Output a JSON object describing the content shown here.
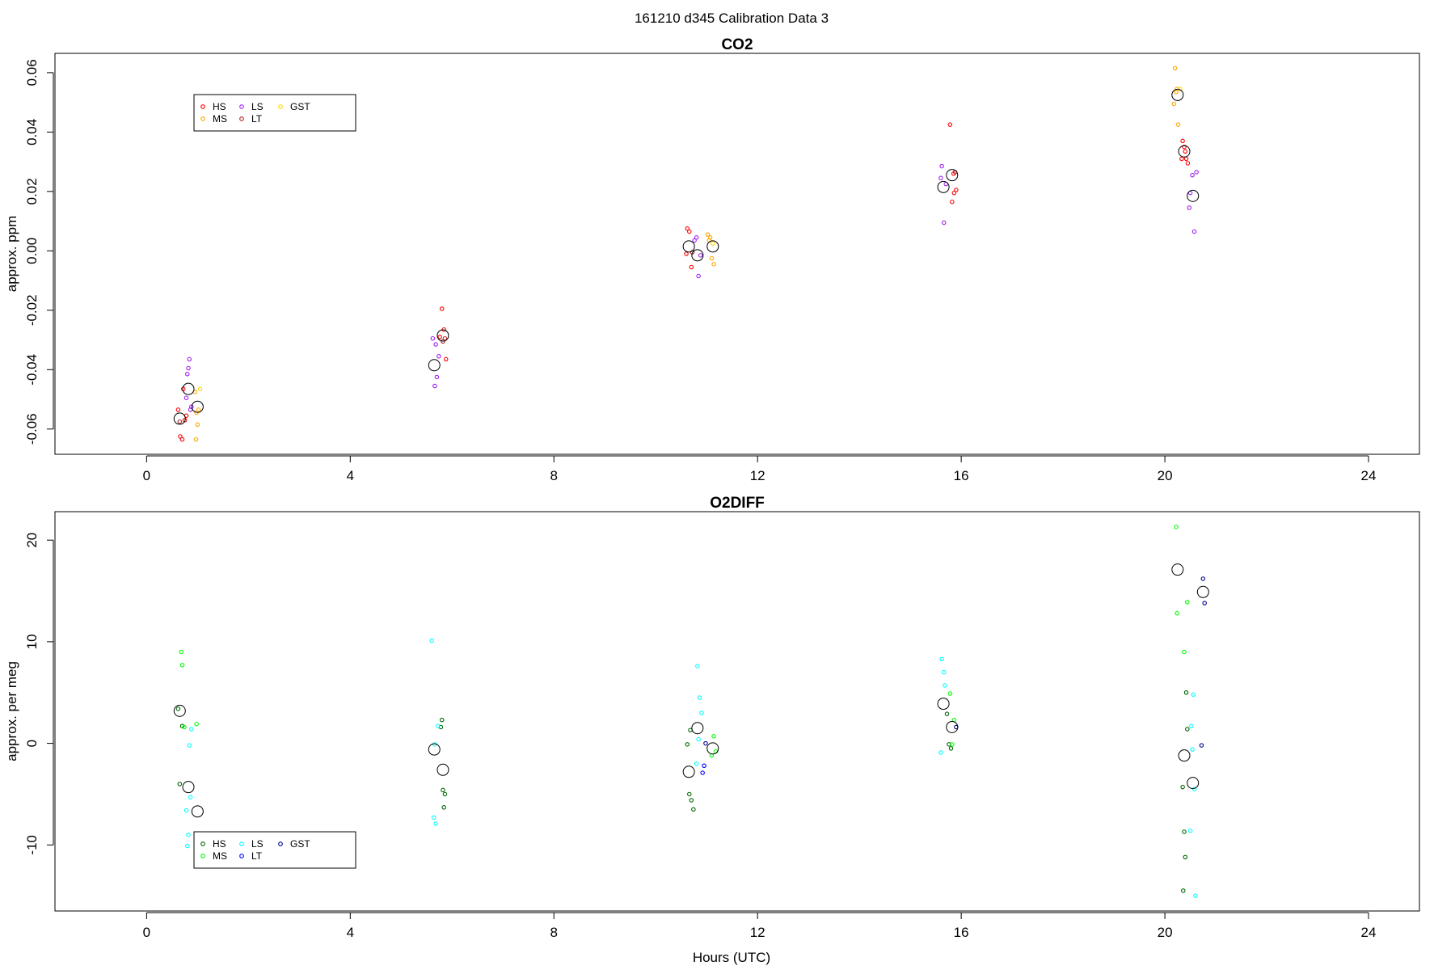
{
  "figure": {
    "suptitle": "161210   d345   Calibration Data 3",
    "xlabel": "Hours (UTC)"
  },
  "chart_data": [
    {
      "type": "scatter",
      "title": "CO2",
      "ylabel": "approx. ppm",
      "xlim": [
        -1.8,
        25
      ],
      "ylim": [
        -0.0685,
        0.0665
      ],
      "xticks": [
        0,
        4,
        8,
        12,
        16,
        20,
        24
      ],
      "yticks": [
        -0.06,
        -0.04,
        -0.02,
        0.0,
        0.02,
        0.04,
        0.06
      ],
      "ytick_labels": [
        "-0.06",
        "-0.04",
        "-0.02",
        "0.00",
        "0.02",
        "0.04",
        "0.06"
      ],
      "grid": false,
      "legend": {
        "placement": "top-left",
        "entries": [
          {
            "label": "HS",
            "color": "#ff0000"
          },
          {
            "label": "MS",
            "color": "#ffa500"
          },
          {
            "label": "LS",
            "color": "#a020f0"
          },
          {
            "label": "LT",
            "color": "#b22222"
          },
          {
            "label": "GST",
            "color": "#ffd700"
          }
        ]
      },
      "series": [
        {
          "color": "#ff0000",
          "points": [
            [
              0.62,
              -0.0535
            ],
            [
              0.66,
              -0.0625
            ],
            [
              0.7,
              -0.0635
            ],
            [
              0.72,
              -0.0465
            ],
            [
              0.75,
              -0.057
            ],
            [
              0.78,
              -0.0555
            ],
            [
              5.8,
              -0.0195
            ],
            [
              5.84,
              -0.0265
            ],
            [
              5.88,
              -0.0365
            ],
            [
              5.76,
              -0.029
            ],
            [
              10.62,
              0.0075
            ],
            [
              10.66,
              0.0065
            ],
            [
              10.7,
              -0.0055
            ],
            [
              10.6,
              -0.001
            ],
            [
              15.78,
              0.0425
            ],
            [
              15.82,
              0.0165
            ],
            [
              15.86,
              0.0195
            ],
            [
              15.9,
              0.0205
            ],
            [
              15.85,
              0.026
            ],
            [
              20.35,
              0.037
            ],
            [
              20.38,
              0.035
            ],
            [
              20.42,
              0.031
            ],
            [
              20.45,
              0.0295
            ],
            [
              20.33,
              0.031
            ],
            [
              20.4,
              0.0335
            ]
          ]
        },
        {
          "color": "#ffa500",
          "points": [
            [
              0.95,
              -0.0475
            ],
            [
              0.98,
              -0.0545
            ],
            [
              1.0,
              -0.0585
            ],
            [
              1.02,
              -0.0535
            ],
            [
              0.97,
              -0.0635
            ],
            [
              11.02,
              0.0055
            ],
            [
              11.05,
              0.0035
            ],
            [
              11.1,
              -0.0025
            ],
            [
              11.14,
              -0.0045
            ],
            [
              11.07,
              0.0045
            ],
            [
              20.2,
              0.0615
            ],
            [
              20.24,
              0.0545
            ],
            [
              20.18,
              0.0495
            ],
            [
              20.26,
              0.0425
            ],
            [
              20.22,
              0.0535
            ]
          ]
        },
        {
          "color": "#a020f0",
          "points": [
            [
              0.78,
              -0.0495
            ],
            [
              0.82,
              -0.0395
            ],
            [
              0.84,
              -0.0365
            ],
            [
              0.86,
              -0.0535
            ],
            [
              0.88,
              -0.0525
            ],
            [
              0.8,
              -0.0415
            ],
            [
              5.62,
              -0.0295
            ],
            [
              5.66,
              -0.0455
            ],
            [
              5.7,
              -0.0425
            ],
            [
              5.74,
              -0.0355
            ],
            [
              5.68,
              -0.0315
            ],
            [
              10.8,
              0.0045
            ],
            [
              10.84,
              -0.0085
            ],
            [
              10.88,
              -0.0015
            ],
            [
              10.76,
              0.0035
            ],
            [
              15.62,
              0.0285
            ],
            [
              15.66,
              0.0095
            ],
            [
              15.7,
              0.0225
            ],
            [
              15.6,
              0.0245
            ],
            [
              20.5,
              0.0195
            ],
            [
              20.54,
              0.0255
            ],
            [
              20.58,
              0.0065
            ],
            [
              20.62,
              0.0265
            ],
            [
              20.48,
              0.0145
            ]
          ]
        },
        {
          "color": "#b22222",
          "points": [
            [
              0.65,
              -0.0575
            ],
            [
              5.82,
              -0.0305
            ],
            [
              5.86,
              -0.0295
            ],
            [
              10.72,
              -0.0005
            ],
            [
              15.88,
              0.0265
            ]
          ]
        },
        {
          "color": "#ffd700",
          "points": [
            [
              11.12,
              0.0025
            ],
            [
              1.05,
              -0.0465
            ],
            [
              20.3,
              0.0545
            ]
          ]
        },
        {
          "color": "#000000",
          "marker": "mean",
          "points": [
            [
              0.65,
              -0.0565
            ],
            [
              0.82,
              -0.0465
            ],
            [
              1.0,
              -0.0525
            ],
            [
              5.65,
              -0.0385
            ],
            [
              5.82,
              -0.0285
            ],
            [
              10.65,
              0.0015
            ],
            [
              10.82,
              -0.0015
            ],
            [
              11.12,
              0.0015
            ],
            [
              15.65,
              0.0215
            ],
            [
              15.82,
              0.0255
            ],
            [
              20.25,
              0.0525
            ],
            [
              20.38,
              0.0335
            ],
            [
              20.55,
              0.0185
            ]
          ]
        }
      ]
    },
    {
      "type": "scatter",
      "title": "O2DIFF",
      "ylabel": "approx. per meg",
      "xlim": [
        -1.8,
        25
      ],
      "ylim": [
        -16.5,
        22.8
      ],
      "xticks": [
        0,
        4,
        8,
        12,
        16,
        20,
        24
      ],
      "yticks": [
        -10,
        0,
        10,
        20
      ],
      "ytick_labels": [
        "-10",
        "0",
        "10",
        "20"
      ],
      "grid": false,
      "legend": {
        "placement": "bottom-left",
        "entries": [
          {
            "label": "HS",
            "color": "#006400"
          },
          {
            "label": "MS",
            "color": "#00ff00"
          },
          {
            "label": "LS",
            "color": "#00ffff"
          },
          {
            "label": "LT",
            "color": "#0000ff"
          },
          {
            "label": "GST",
            "color": "#00008b"
          }
        ]
      },
      "series": [
        {
          "color": "#006400",
          "points": [
            [
              0.62,
              3.4
            ],
            [
              0.65,
              -4.0
            ],
            [
              0.7,
              1.7
            ],
            [
              5.78,
              1.6
            ],
            [
              5.82,
              -4.6
            ],
            [
              5.86,
              -5.0
            ],
            [
              5.84,
              -6.3
            ],
            [
              5.8,
              2.3
            ],
            [
              10.62,
              -0.1
            ],
            [
              10.66,
              -5.0
            ],
            [
              10.7,
              -5.6
            ],
            [
              10.74,
              -6.5
            ],
            [
              10.68,
              1.3
            ],
            [
              15.72,
              2.9
            ],
            [
              15.8,
              -0.5
            ],
            [
              15.76,
              -0.1
            ],
            [
              20.35,
              -4.3
            ],
            [
              20.38,
              -8.7
            ],
            [
              20.4,
              -11.2
            ],
            [
              20.36,
              -14.5
            ],
            [
              20.42,
              5.0
            ],
            [
              20.44,
              1.4
            ]
          ]
        },
        {
          "color": "#00ff00",
          "points": [
            [
              0.68,
              9.0
            ],
            [
              0.7,
              7.7
            ],
            [
              0.74,
              1.6
            ],
            [
              0.98,
              1.9
            ],
            [
              1.0,
              -10.4
            ],
            [
              1.02,
              -11.6
            ],
            [
              11.14,
              0.7
            ],
            [
              11.18,
              -0.8
            ],
            [
              11.1,
              -1.2
            ],
            [
              15.86,
              2.3
            ],
            [
              15.82,
              -0.1
            ],
            [
              15.78,
              4.9
            ],
            [
              20.22,
              21.3
            ],
            [
              20.24,
              12.8
            ],
            [
              20.38,
              9.0
            ],
            [
              20.44,
              13.9
            ]
          ]
        },
        {
          "color": "#00ffff",
          "points": [
            [
              0.78,
              -6.6
            ],
            [
              0.82,
              -9.0
            ],
            [
              0.86,
              -5.3
            ],
            [
              0.8,
              -10.1
            ],
            [
              0.88,
              1.4
            ],
            [
              0.84,
              -0.2
            ],
            [
              5.6,
              10.1
            ],
            [
              5.64,
              -7.3
            ],
            [
              5.68,
              -7.9
            ],
            [
              5.72,
              1.7
            ],
            [
              5.66,
              -0.1
            ],
            [
              10.82,
              7.6
            ],
            [
              10.86,
              4.5
            ],
            [
              10.9,
              3.0
            ],
            [
              10.84,
              0.4
            ],
            [
              10.8,
              -2.0
            ],
            [
              15.62,
              8.3
            ],
            [
              15.66,
              7.0
            ],
            [
              15.68,
              5.7
            ],
            [
              15.6,
              -0.9
            ],
            [
              20.52,
              1.7
            ],
            [
              20.56,
              4.8
            ],
            [
              20.58,
              -4.5
            ],
            [
              20.6,
              -15.0
            ],
            [
              20.5,
              -8.6
            ],
            [
              20.54,
              -0.6
            ]
          ]
        },
        {
          "color": "#0000ff",
          "points": [
            [
              10.95,
              -2.2
            ],
            [
              10.92,
              -2.9
            ]
          ]
        },
        {
          "color": "#00008b",
          "points": [
            [
              20.75,
              16.2
            ],
            [
              20.78,
              13.8
            ],
            [
              20.72,
              -0.2
            ],
            [
              15.9,
              1.6
            ],
            [
              10.98,
              0.0
            ]
          ]
        },
        {
          "color": "#000000",
          "marker": "mean",
          "points": [
            [
              0.65,
              3.2
            ],
            [
              0.82,
              -4.3
            ],
            [
              1.0,
              -6.7
            ],
            [
              5.65,
              -0.6
            ],
            [
              5.82,
              -2.6
            ],
            [
              10.65,
              -2.8
            ],
            [
              10.82,
              1.5
            ],
            [
              11.12,
              -0.5
            ],
            [
              15.65,
              3.9
            ],
            [
              15.82,
              1.6
            ],
            [
              20.25,
              17.1
            ],
            [
              20.38,
              -1.2
            ],
            [
              20.55,
              -3.9
            ],
            [
              20.75,
              14.9
            ]
          ]
        }
      ]
    }
  ]
}
